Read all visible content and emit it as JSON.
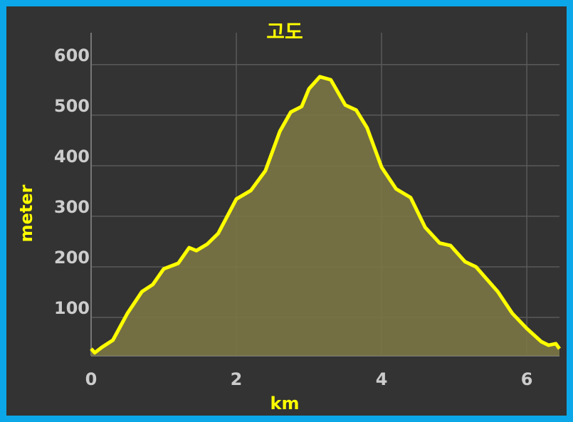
{
  "chart_data": {
    "type": "area",
    "title": "고도",
    "x_label": "km",
    "y_label": "meter",
    "x": [
      0,
      0.05,
      0.15,
      0.3,
      0.5,
      0.7,
      0.85,
      1.0,
      1.2,
      1.35,
      1.45,
      1.6,
      1.75,
      2.0,
      2.2,
      2.4,
      2.6,
      2.75,
      2.9,
      3.0,
      3.15,
      3.3,
      3.5,
      3.65,
      3.8,
      4.0,
      4.2,
      4.4,
      4.6,
      4.8,
      4.95,
      5.15,
      5.3,
      5.6,
      5.8,
      6.0,
      6.2,
      6.3,
      6.4,
      6.45
    ],
    "values": [
      38,
      30,
      41,
      55,
      108,
      151,
      165,
      196,
      207,
      238,
      232,
      245,
      266,
      334,
      351,
      390,
      468,
      506,
      517,
      552,
      576,
      570,
      520,
      510,
      475,
      397,
      354,
      337,
      278,
      247,
      242,
      210,
      200,
      151,
      108,
      78,
      52,
      45,
      48,
      38
    ],
    "color": "#ffff00",
    "fill_color": "#7a7545",
    "xlim": [
      0,
      6.45
    ],
    "ylim": [
      24,
      663
    ],
    "xticks": [
      0,
      2,
      4,
      6
    ],
    "yticks": [
      100,
      200,
      300,
      400,
      500,
      600
    ],
    "grid": true
  }
}
